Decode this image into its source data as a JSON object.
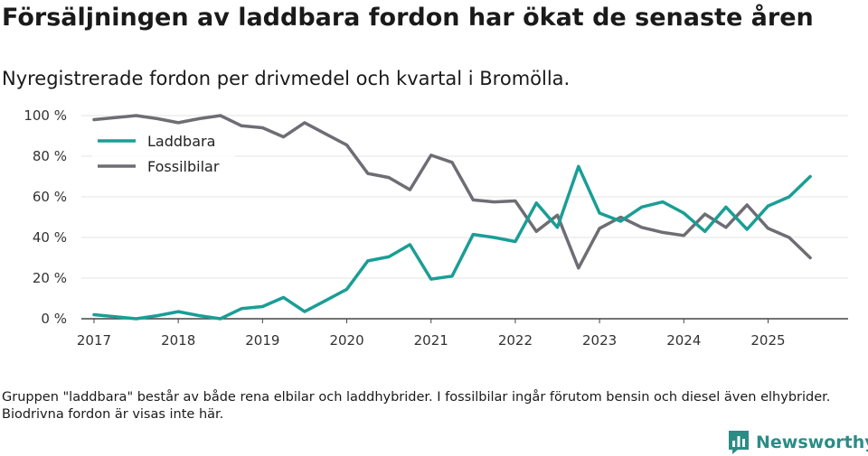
{
  "header": {
    "title": "Försäljningen av laddbara fordon har ökat de senaste åren",
    "subtitle": "Nyregistrerade fordon per drivmedel och kvartal i Bromölla."
  },
  "footer": {
    "note": "Gruppen \"laddbara\" består av både rena elbilar och laddhybrider. I fossilbilar ingår förutom bensin och diesel även elhybrider. Biodrivna fordon är visas inte här.",
    "brand": "Newsworthy"
  },
  "chart_data": {
    "type": "line",
    "title": "Försäljningen av laddbara fordon har ökat de senaste åren",
    "subtitle": "Nyregistrerade fordon per drivmedel och kvartal i Bromölla.",
    "xlabel": "",
    "ylabel": "",
    "x": [
      2017.0,
      2017.25,
      2017.5,
      2017.75,
      2018.0,
      2018.25,
      2018.5,
      2018.75,
      2019.0,
      2019.25,
      2019.5,
      2019.75,
      2020.0,
      2020.25,
      2020.5,
      2020.75,
      2021.0,
      2021.25,
      2021.5,
      2021.75,
      2022.0,
      2022.25,
      2022.5,
      2022.75,
      2023.0,
      2023.25,
      2023.5,
      2023.75,
      2024.0,
      2024.25,
      2024.5,
      2024.75,
      2025.0,
      2025.25,
      2025.5
    ],
    "xlim": [
      2016.85,
      2025.95
    ],
    "ylim": [
      0,
      100
    ],
    "x_ticks": [
      2017,
      2018,
      2019,
      2020,
      2021,
      2022,
      2023,
      2024,
      2025
    ],
    "x_tick_labels": [
      "2017",
      "2018",
      "2019",
      "2020",
      "2021",
      "2022",
      "2023",
      "2024",
      "2025"
    ],
    "y_ticks": [
      0,
      20,
      40,
      60,
      80,
      100
    ],
    "y_tick_labels": [
      "0 %",
      "20 %",
      "40 %",
      "60 %",
      "80 %",
      "100 %"
    ],
    "grid": true,
    "legend_position": "top-left",
    "series": [
      {
        "name": "Laddbara",
        "color": "#1a9e95",
        "values": [
          2,
          1,
          0,
          1.5,
          3.5,
          1.5,
          0,
          5,
          6,
          10.5,
          3.5,
          9,
          14.5,
          28.5,
          30.5,
          36.5,
          19.5,
          21,
          41.5,
          40,
          38,
          57,
          45,
          75,
          52,
          48,
          55,
          57.5,
          52,
          43,
          55,
          44,
          55.5,
          60,
          70
        ]
      },
      {
        "name": "Fossilbilar",
        "color": "#6e6d74",
        "values": [
          98,
          99,
          100,
          98.5,
          96.5,
          98.5,
          100,
          95,
          94,
          89.5,
          96.5,
          91,
          85.5,
          71.5,
          69.5,
          63.5,
          80.5,
          77,
          58.5,
          57.5,
          58,
          43,
          51,
          25,
          44.5,
          50,
          45,
          42.5,
          41,
          51.5,
          45,
          56,
          44.5,
          40,
          30
        ]
      }
    ]
  }
}
